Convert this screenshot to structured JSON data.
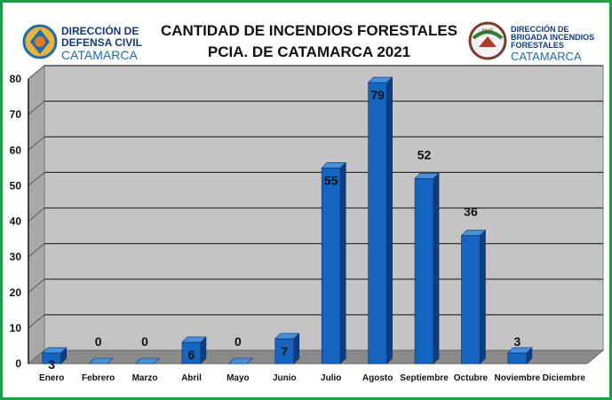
{
  "header": {
    "title_line1": "CANTIDAD DE INCENDIOS FORESTALES",
    "title_line2": "PCIA. DE CATAMARCA 2021"
  },
  "logo_left": {
    "line1": "DIRECCIÓN DE",
    "line2": "DEFENSA CIVIL",
    "line3": "CATAMARCA"
  },
  "logo_right": {
    "line1": "DIRECCIÓN DE",
    "line2": "BRIGADA INCENDIOS",
    "line3": "FORESTALES",
    "line4": "CATAMARCA",
    "badge": "PMF"
  },
  "chart_data": {
    "type": "bar",
    "title": "CANTIDAD DE INCENDIOS FORESTALES PCIA. DE CATAMARCA 2021",
    "categories": [
      "Enero",
      "Febrero",
      "Marzo",
      "Abril",
      "Mayo",
      "Junio",
      "Julio",
      "Agosto",
      "Septiembre",
      "Octubre",
      "Noviembre",
      "Diciembre"
    ],
    "values": [
      3,
      0,
      0,
      6,
      0,
      7,
      55,
      79,
      52,
      36,
      3,
      null
    ],
    "data_labels": [
      "3",
      "0",
      "0",
      "6",
      "0",
      "7",
      "55",
      "79",
      "52",
      "36",
      "3",
      ""
    ],
    "yticks": [
      "0",
      "10",
      "20",
      "30",
      "40",
      "50",
      "60",
      "70",
      "80"
    ],
    "ylim": [
      0,
      80
    ],
    "grid": true,
    "legend": "none",
    "colors": {
      "bar_front": "#1565c0",
      "bar_side": "#0c3d80",
      "bar_top": "#4a90d9",
      "wall": "#c4c4c4",
      "floor": "#8a8a8a",
      "frame": "#1f9e4a"
    }
  }
}
